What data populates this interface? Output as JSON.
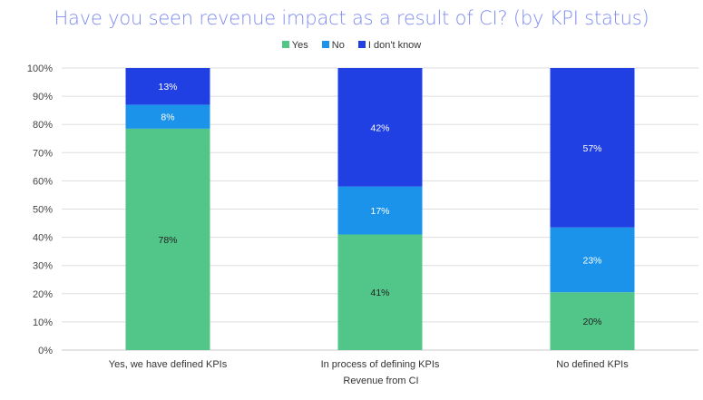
{
  "chart_data": {
    "type": "bar",
    "stacked": true,
    "title": "Have you seen revenue impact as a result of CI? (by KPI status)",
    "xlabel": "Revenue from CI",
    "ylabel": "",
    "ylim": [
      0,
      100
    ],
    "yticks": [
      "0%",
      "10%",
      "20%",
      "30%",
      "40%",
      "50%",
      "60%",
      "70%",
      "80%",
      "90%",
      "100%"
    ],
    "grid": true,
    "legend_position": "top",
    "categories": [
      "Yes, we have defined KPIs",
      "In process of defining KPIs",
      "No defined KPIs"
    ],
    "series": [
      {
        "name": "Yes",
        "color": "#52C689",
        "label_color": "#222222",
        "values": [
          78.5,
          41,
          20.5
        ],
        "labels": [
          "78%",
          "41%",
          "20%"
        ]
      },
      {
        "name": "No",
        "color": "#1B93EA",
        "label_color": "#ffffff",
        "values": [
          8.5,
          17,
          23
        ],
        "labels": [
          "8%",
          "17%",
          "23%"
        ]
      },
      {
        "name": "I don't know",
        "color": "#2140E3",
        "label_color": "#ffffff",
        "values": [
          13,
          42,
          56.5
        ],
        "labels": [
          "13%",
          "42%",
          "57%"
        ]
      }
    ]
  }
}
